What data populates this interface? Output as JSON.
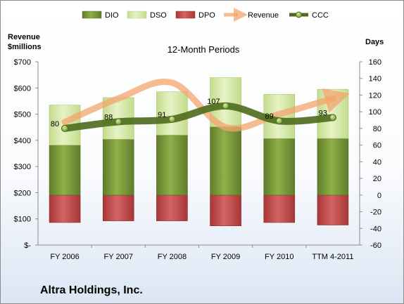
{
  "chart_data": {
    "type": "bar",
    "title": "12-Month Periods",
    "company": "Altra Holdings, Inc.",
    "left_axis_label": [
      "Revenue",
      "$millions"
    ],
    "right_axis_label": "Days",
    "categories": [
      "FY 2006",
      "FY 2007",
      "FY 2008",
      "FY 2009",
      "FY 2010",
      "TTM 4-2011"
    ],
    "left_ticks": [
      "$-",
      "$100",
      "$200",
      "$300",
      "$400",
      "$500",
      "$600",
      "$700"
    ],
    "left_ylim": [
      0,
      700
    ],
    "right_ticks": [
      "-60",
      "-40",
      "-20",
      "0",
      "20",
      "40",
      "60",
      "80",
      "100",
      "120",
      "140",
      "160"
    ],
    "right_ylim": [
      -60,
      160
    ],
    "legend": [
      "DIO",
      "DSO",
      "DPO",
      "Revenue",
      "CCC"
    ],
    "legend_position": "top",
    "grid": false,
    "series": [
      {
        "name": "DIO",
        "axis": "right",
        "values": [
          60,
          67,
          72,
          82,
          68,
          68
        ]
      },
      {
        "name": "DSO",
        "axis": "right",
        "values": [
          48,
          50,
          52,
          59,
          53,
          59
        ]
      },
      {
        "name": "DPO",
        "axis": "right",
        "values": [
          -33,
          -31,
          -31,
          -37,
          -33,
          -36
        ]
      },
      {
        "name": "Revenue",
        "axis": "left",
        "values": [
          470,
          560,
          620,
          450,
          500,
          560
        ]
      },
      {
        "name": "CCC",
        "axis": "right",
        "values": [
          80,
          88,
          91,
          107,
          89,
          93
        ]
      }
    ],
    "ccc_labels": [
      "80",
      "88",
      "91",
      "107",
      "89",
      "93"
    ]
  },
  "colors": {
    "dio": "#7c9c3c",
    "dso": "#d6e8a8",
    "dpo": "#c04848",
    "revenue": "#f3a46c",
    "ccc": "#4c6b1c",
    "frame": "#8c8c8c"
  }
}
